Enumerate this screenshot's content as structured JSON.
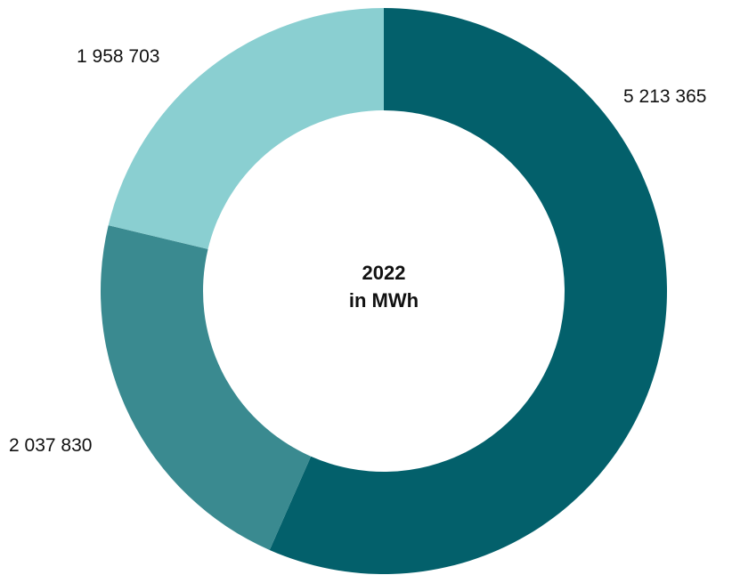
{
  "chart_data": {
    "type": "pie",
    "variant": "donut",
    "center_label": {
      "line1": "2022",
      "line2": "in MWh"
    },
    "slices": [
      {
        "value": 5213365,
        "label": "5 213 365",
        "color": "#03606B"
      },
      {
        "value": 2037830,
        "label": "2 037 830",
        "color": "#3A8A90"
      },
      {
        "value": 1958703,
        "label": "1 958 703",
        "color": "#8ACFD1"
      }
    ],
    "legend": "none"
  }
}
